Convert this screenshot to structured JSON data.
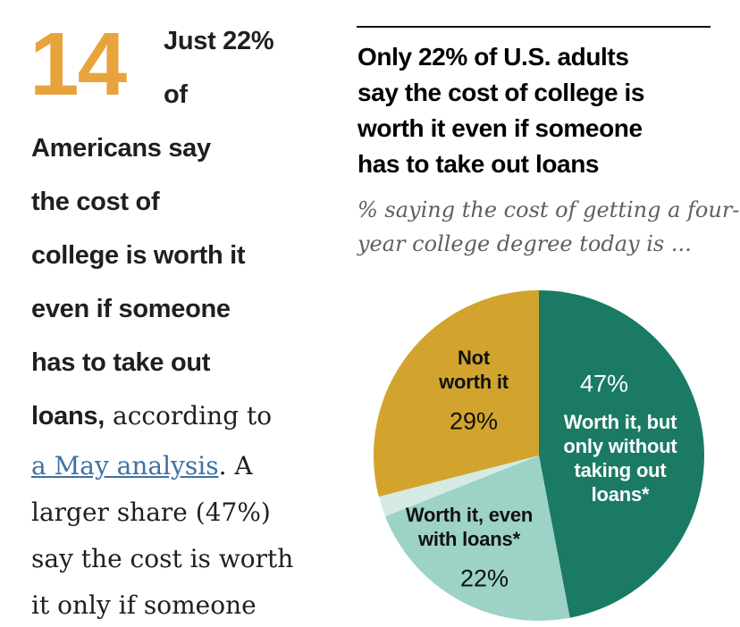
{
  "intro": {
    "number": "14",
    "number_color": "#E9A33C",
    "link_color": "#3D72A4",
    "lines": [
      {
        "bold": "Just 22%"
      },
      {
        "bold": "of"
      },
      {
        "bold": "Americans say"
      },
      {
        "bold": "the cost of"
      },
      {
        "bold": "college is worth it"
      },
      {
        "bold": "even if someone"
      },
      {
        "bold": "has to take out"
      },
      {
        "bold": "loans,",
        "serif": "according to"
      },
      {
        "link": "a May analysis",
        "serif": ". A"
      },
      {
        "serif": "larger share (47%)"
      },
      {
        "serif": "say the cost is worth"
      },
      {
        "serif": "it only if someone"
      }
    ]
  },
  "chart": {
    "title_lines": [
      "Only 22% of U.S. adults",
      "say the cost of college is",
      "worth it even if someone",
      "has to take out loans"
    ],
    "subtitle_lines": [
      "% saying the cost of getting a four-",
      "year college degree today is ..."
    ]
  },
  "chart_data": {
    "type": "pie",
    "title": "Only 22% of U.S. adults say the cost of college is worth it even if someone has to take out loans",
    "subtitle": "% saying the cost of getting a four-year college degree today is ...",
    "start_angle_deg": -90,
    "direction": "clockwise",
    "slices": [
      {
        "label": "Worth it, but only without taking out loans*",
        "label_lines": [
          "Worth it, but",
          "only without",
          "taking out",
          "loans*"
        ],
        "value": 47,
        "pct_label": "47%",
        "color": "#1A7A64",
        "text_color": "#ffffff"
      },
      {
        "label": "Worth it, even with loans*",
        "label_lines": [
          "Worth it, even",
          "with loans*"
        ],
        "value": 22,
        "pct_label": "22%",
        "color": "#9DD2C6",
        "text_color": "#111111"
      },
      {
        "label": "",
        "label_lines": [],
        "value": 2,
        "pct_label": "",
        "color": "#D5EAE2",
        "text_color": "#111111"
      },
      {
        "label": "Not worth it",
        "label_lines": [
          "Not",
          "worth it"
        ],
        "value": 29,
        "pct_label": "29%",
        "color": "#D2A42D",
        "text_color": "#111111"
      }
    ]
  }
}
